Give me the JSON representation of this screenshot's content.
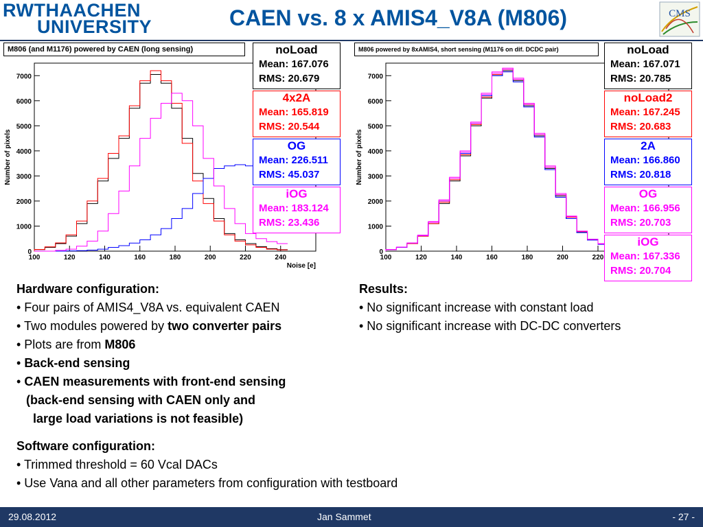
{
  "header": {
    "logo_line1": "RWTHAACHEN",
    "logo_line2": "UNIVERSITY",
    "title": "CAEN vs. 8 x AMIS4_V8A (M806)",
    "cms_logo_text": "CMS"
  },
  "colors": {
    "header_blue": "#00549f",
    "footer_navy": "#1f3864",
    "red": "#ff0000",
    "blue": "#0000ff",
    "magenta": "#ff00ff",
    "black": "#000000"
  },
  "chart_data": [
    {
      "type": "line",
      "caption": "M806 (and M1176) powered by CAEN (long sensing)",
      "xlabel": "Noise [e]",
      "ylabel": "Number of pixels",
      "xlim": [
        100,
        260
      ],
      "ylim": [
        0,
        7500
      ],
      "x_ticks": [
        "100",
        "120",
        "140",
        "160",
        "180",
        "200",
        "220",
        "240"
      ],
      "y_ticks": [
        "0",
        "1000",
        "2000",
        "3000",
        "4000",
        "5000",
        "6000",
        "7000"
      ],
      "bin_edges": [
        100,
        106,
        112,
        118,
        124,
        130,
        136,
        142,
        148,
        154,
        160,
        166,
        172,
        178,
        184,
        190,
        196,
        202,
        208,
        214,
        220,
        226,
        232,
        238,
        244
      ],
      "series": [
        {
          "name": "noLoad",
          "color": "#000000",
          "values": [
            60,
            150,
            300,
            600,
            1100,
            1900,
            2800,
            3700,
            4500,
            5700,
            6700,
            7050,
            6700,
            5700,
            4500,
            3100,
            2100,
            1300,
            700,
            450,
            300,
            180,
            100,
            60
          ]
        },
        {
          "name": "4x2A",
          "color": "#ff0000",
          "values": [
            70,
            170,
            330,
            650,
            1200,
            2000,
            2900,
            3900,
            4600,
            5800,
            6800,
            7200,
            6800,
            5900,
            4300,
            2800,
            1900,
            1200,
            650,
            400,
            250,
            150,
            80,
            50
          ]
        },
        {
          "name": "OG",
          "color": "#0000ff",
          "values": [
            0,
            0,
            0,
            10,
            20,
            40,
            80,
            150,
            220,
            320,
            450,
            650,
            900,
            1300,
            1700,
            2300,
            2900,
            3300,
            3400,
            3450,
            3400,
            3300,
            3150,
            2950
          ]
        },
        {
          "name": "iOG",
          "color": "#ff00ff",
          "values": [
            0,
            0,
            30,
            80,
            200,
            400,
            800,
            1500,
            2400,
            3400,
            4500,
            5300,
            5900,
            6300,
            6000,
            5000,
            3700,
            2600,
            1700,
            1100,
            700,
            500,
            380,
            300
          ]
        }
      ],
      "stats": [
        {
          "name": "noLoad",
          "color": "#000000",
          "mean": "Mean: 167.076",
          "rms": "RMS: 20.679"
        },
        {
          "name": "4x2A",
          "color": "#ff0000",
          "mean": "Mean: 165.819",
          "rms": "RMS: 20.544"
        },
        {
          "name": "OG",
          "color": "#0000ff",
          "mean": "Mean: 226.511",
          "rms": "RMS: 45.037"
        },
        {
          "name": "iOG",
          "color": "#ff00ff",
          "mean": "Mean: 183.124",
          "rms": "RMS: 23.436"
        }
      ]
    },
    {
      "type": "line",
      "caption": "M806 powered by 8xAMIS4, short sensing (M1176 on dif. DCDC pair)",
      "xlabel": "",
      "ylabel": "Number of pixels",
      "xlim": [
        100,
        260
      ],
      "ylim": [
        0,
        7500
      ],
      "x_ticks": [
        "100",
        "120",
        "140",
        "160",
        "180",
        "200",
        "220"
      ],
      "y_ticks": [
        "0",
        "1000",
        "2000",
        "3000",
        "4000",
        "5000",
        "6000",
        "7000"
      ],
      "bin_edges": [
        100,
        106,
        112,
        118,
        124,
        130,
        136,
        142,
        148,
        154,
        160,
        166,
        172,
        178,
        184,
        190,
        196,
        202,
        208,
        214,
        220,
        226,
        232,
        238,
        244
      ],
      "series": [
        {
          "name": "noLoad",
          "color": "#000000",
          "values": [
            60,
            150,
            300,
            600,
            1100,
            1900,
            2800,
            3800,
            5000,
            6100,
            7000,
            7200,
            6800,
            5800,
            4600,
            3300,
            2200,
            1300,
            750,
            450,
            280,
            160,
            90,
            50
          ]
        },
        {
          "name": "noLoad2",
          "color": "#ff0000",
          "values": [
            60,
            150,
            300,
            600,
            1100,
            1950,
            2850,
            3850,
            5050,
            6150,
            7050,
            7250,
            6850,
            5850,
            4650,
            3350,
            2250,
            1350,
            780,
            460,
            290,
            170,
            95,
            55
          ]
        },
        {
          "name": "2A",
          "color": "#0000ff",
          "values": [
            60,
            150,
            320,
            620,
            1150,
            2000,
            2900,
            3900,
            5100,
            6200,
            7000,
            7150,
            6750,
            5750,
            4550,
            3250,
            2150,
            1300,
            740,
            440,
            270,
            160,
            90,
            50
          ]
        },
        {
          "name": "OG",
          "color": "#ff00ff",
          "values": [
            60,
            160,
            320,
            620,
            1150,
            2000,
            2900,
            3950,
            5100,
            6250,
            7100,
            7300,
            6900,
            5900,
            4700,
            3400,
            2300,
            1400,
            800,
            480,
            300,
            170,
            95,
            55
          ]
        },
        {
          "name": "iOG",
          "color": "#ff00ff",
          "values": [
            60,
            160,
            330,
            640,
            1180,
            2050,
            2950,
            4000,
            5150,
            6300,
            7150,
            7250,
            6850,
            5850,
            4650,
            3350,
            2250,
            1380,
            790,
            470,
            290,
            165,
            92,
            52
          ]
        }
      ],
      "stats": [
        {
          "name": "noLoad",
          "color": "#000000",
          "mean": "Mean: 167.071",
          "rms": "RMS: 20.785"
        },
        {
          "name": "noLoad2",
          "color": "#ff0000",
          "mean": "Mean: 167.245",
          "rms": "RMS: 20.683"
        },
        {
          "name": "2A",
          "color": "#0000ff",
          "mean": "Mean: 166.860",
          "rms": "RMS: 20.818"
        },
        {
          "name": "OG",
          "color": "#ff00ff",
          "mean": "Mean: 166.956",
          "rms": "RMS: 20.703"
        },
        {
          "name": "iOG",
          "color": "#ff00ff",
          "mean": "Mean: 167.336",
          "rms": "RMS: 20.704"
        }
      ]
    }
  ],
  "text_left": {
    "hw_heading": "Hardware configuration:",
    "hw_items": [
      {
        "plain": "• Four pairs of AMIS4_V8A vs. equivalent CAEN",
        "bold": ""
      },
      {
        "plain": "• Two modules powered by ",
        "bold": "two converter pairs"
      },
      {
        "plain": "• Plots are from ",
        "bold": "M806"
      },
      {
        "plain": "• ",
        "bold": "Back-end sensing"
      },
      {
        "plain": "• ",
        "bold": "CAEN measurements with front-end sensing"
      }
    ],
    "hw_note1": "(back-end sensing with CAEN only and",
    "hw_note2": "large load variations is not feasible)",
    "sw_heading": "Software configuration:",
    "sw_items": [
      "• Trimmed threshold = 60 Vcal DACs",
      "• Use Vana and all other parameters from configuration with testboard"
    ]
  },
  "text_right": {
    "heading": "Results:",
    "items": [
      "• No significant increase with constant load",
      "• No significant increase with DC-DC converters"
    ]
  },
  "footer": {
    "date": "29.08.2012",
    "author": "Jan Sammet",
    "page": "- 27 -"
  }
}
